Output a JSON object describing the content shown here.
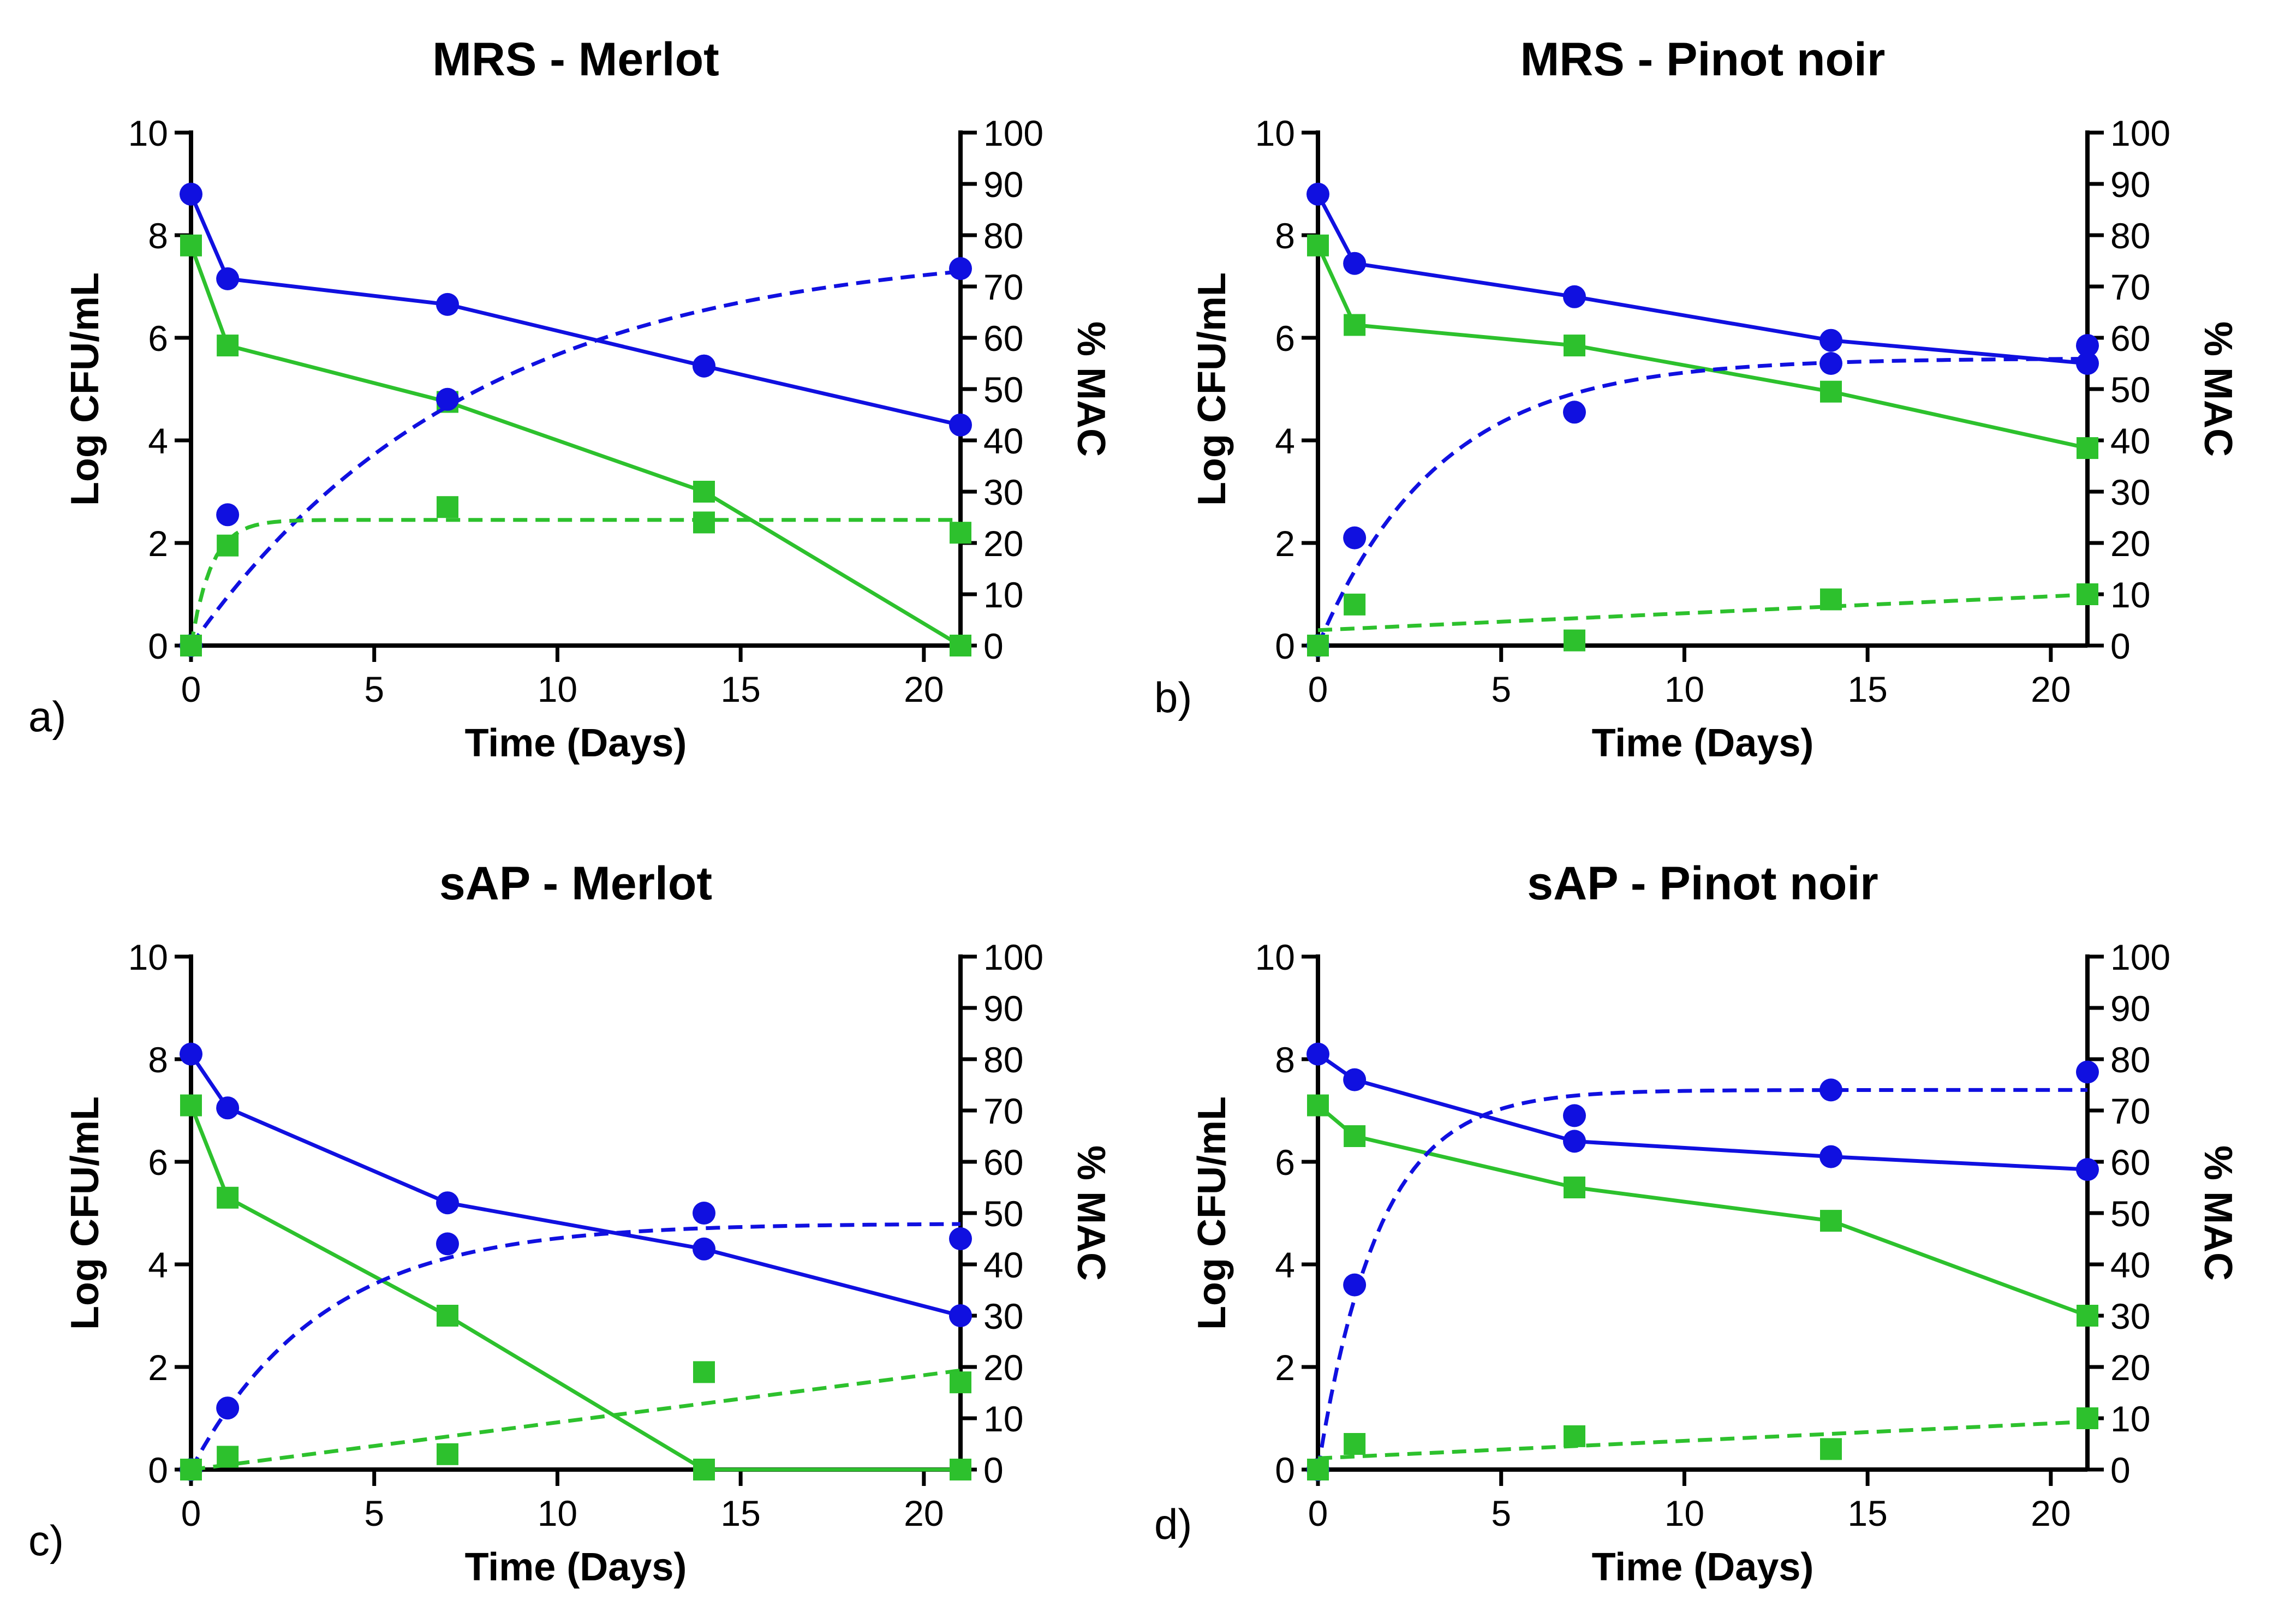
{
  "colors": {
    "blue": "#1010e0",
    "green": "#2dc12d",
    "axis": "#000000"
  },
  "chart_data": [
    {
      "type": "line",
      "panel_label": "a)",
      "title": "MRS - Merlot",
      "xlabel": "Time (Days)",
      "ylabel": "Log CFU/mL",
      "y2label": "% MAC",
      "xlim": [
        0,
        21
      ],
      "ylim": [
        0,
        10
      ],
      "y2lim": [
        0,
        100
      ],
      "xticks": [
        0,
        5,
        10,
        15,
        20
      ],
      "yticks": [
        0,
        2,
        4,
        6,
        8,
        10
      ],
      "y2ticks": [
        0,
        10,
        20,
        30,
        40,
        50,
        60,
        70,
        80,
        90,
        100
      ],
      "series": [
        {
          "name": "Log CFU/mL (circles)",
          "axis": "left",
          "color": "blue",
          "marker": "circle",
          "line": "solid",
          "x": [
            0,
            1,
            7,
            14,
            21
          ],
          "values": [
            8.8,
            7.15,
            6.65,
            5.45,
            4.3
          ]
        },
        {
          "name": "Log CFU/mL (squares)",
          "axis": "left",
          "color": "green",
          "marker": "square",
          "line": "solid",
          "x": [
            0,
            1,
            7,
            14,
            21
          ],
          "values": [
            7.8,
            5.85,
            4.75,
            3.0,
            0.0
          ]
        },
        {
          "name": "% MAC (circles)",
          "axis": "right",
          "color": "blue",
          "marker": "circle",
          "line": "dashed",
          "x": [
            0,
            1,
            7,
            14,
            21
          ],
          "values": [
            0,
            25.5,
            48,
            54.5,
            73.5
          ],
          "fit": {
            "model": "one-phase",
            "ymax": 78,
            "k": 0.13
          }
        },
        {
          "name": "% MAC (squares)",
          "axis": "right",
          "color": "green",
          "marker": "square",
          "line": "dashed",
          "x": [
            0,
            1,
            7,
            14,
            21
          ],
          "values": [
            0,
            19.5,
            27,
            24,
            22
          ],
          "fit": {
            "model": "one-phase",
            "ymax": 24.5,
            "k": 1.8
          }
        }
      ]
    },
    {
      "type": "line",
      "panel_label": "b)",
      "title": "MRS - Pinot noir",
      "xlabel": "Time (Days)",
      "ylabel": "Log CFU/mL",
      "y2label": "% MAC",
      "xlim": [
        0,
        21
      ],
      "ylim": [
        0,
        10
      ],
      "y2lim": [
        0,
        100
      ],
      "xticks": [
        0,
        5,
        10,
        15,
        20
      ],
      "yticks": [
        0,
        2,
        4,
        6,
        8,
        10
      ],
      "y2ticks": [
        0,
        10,
        20,
        30,
        40,
        50,
        60,
        70,
        80,
        90,
        100
      ],
      "series": [
        {
          "name": "Log CFU/mL (circles)",
          "axis": "left",
          "color": "blue",
          "marker": "circle",
          "line": "solid",
          "x": [
            0,
            1,
            7,
            14,
            21
          ],
          "values": [
            8.8,
            7.45,
            6.8,
            5.95,
            5.5
          ]
        },
        {
          "name": "Log CFU/mL (squares)",
          "axis": "left",
          "color": "green",
          "marker": "square",
          "line": "solid",
          "x": [
            0,
            1,
            7,
            14,
            21
          ],
          "values": [
            7.8,
            6.25,
            5.85,
            4.95,
            3.85
          ]
        },
        {
          "name": "% MAC (circles)",
          "axis": "right",
          "color": "blue",
          "marker": "circle",
          "line": "dashed",
          "x": [
            0,
            1,
            7,
            14,
            21
          ],
          "values": [
            0,
            21,
            45.5,
            55,
            58.5
          ],
          "fit": {
            "model": "one-phase",
            "ymax": 56,
            "k": 0.3
          }
        },
        {
          "name": "% MAC (squares)",
          "axis": "right",
          "color": "green",
          "marker": "square",
          "line": "dashed",
          "x": [
            0,
            1,
            7,
            14,
            21
          ],
          "values": [
            0,
            8,
            1,
            9,
            10
          ],
          "fit": {
            "model": "linear",
            "y0": 3,
            "slope": 0.33
          }
        }
      ]
    },
    {
      "type": "line",
      "panel_label": "c)",
      "title": "sAP - Merlot",
      "xlabel": "Time (Days)",
      "ylabel": "Log CFU/mL",
      "y2label": "% MAC",
      "xlim": [
        0,
        21
      ],
      "ylim": [
        0,
        10
      ],
      "y2lim": [
        0,
        100
      ],
      "xticks": [
        0,
        5,
        10,
        15,
        20
      ],
      "yticks": [
        0,
        2,
        4,
        6,
        8,
        10
      ],
      "y2ticks": [
        0,
        10,
        20,
        30,
        40,
        50,
        60,
        70,
        80,
        90,
        100
      ],
      "series": [
        {
          "name": "Log CFU/mL (circles)",
          "axis": "left",
          "color": "blue",
          "marker": "circle",
          "line": "solid",
          "x": [
            0,
            1,
            7,
            14,
            21
          ],
          "values": [
            8.1,
            7.05,
            5.2,
            4.3,
            3.0
          ]
        },
        {
          "name": "Log CFU/mL (squares)",
          "axis": "left",
          "color": "green",
          "marker": "square",
          "line": "solid",
          "x": [
            0,
            1,
            7,
            14,
            21
          ],
          "values": [
            7.1,
            5.3,
            3.0,
            0.0,
            0.0
          ]
        },
        {
          "name": "% MAC (circles)",
          "axis": "right",
          "color": "blue",
          "marker": "circle",
          "line": "dashed",
          "x": [
            0,
            1,
            7,
            14,
            21
          ],
          "values": [
            0,
            12,
            44,
            50,
            45
          ],
          "fit": {
            "model": "one-phase",
            "ymax": 48,
            "k": 0.28
          }
        },
        {
          "name": "% MAC (squares)",
          "axis": "right",
          "color": "green",
          "marker": "square",
          "line": "dashed",
          "x": [
            0,
            1,
            7,
            14,
            21
          ],
          "values": [
            0,
            2.5,
            3,
            19,
            17
          ],
          "fit": {
            "model": "linear",
            "y0": 0,
            "slope": 0.92
          }
        }
      ]
    },
    {
      "type": "line",
      "panel_label": "d)",
      "title": "sAP - Pinot noir",
      "xlabel": "Time (Days)",
      "ylabel": "Log CFU/mL",
      "y2label": "% MAC",
      "xlim": [
        0,
        21
      ],
      "ylim": [
        0,
        10
      ],
      "y2lim": [
        0,
        100
      ],
      "xticks": [
        0,
        5,
        10,
        15,
        20
      ],
      "yticks": [
        0,
        2,
        4,
        6,
        8,
        10
      ],
      "y2ticks": [
        0,
        10,
        20,
        30,
        40,
        50,
        60,
        70,
        80,
        90,
        100
      ],
      "series": [
        {
          "name": "Log CFU/mL (circles)",
          "axis": "left",
          "color": "blue",
          "marker": "circle",
          "line": "solid",
          "x": [
            0,
            1,
            7,
            14,
            21
          ],
          "values": [
            8.1,
            7.6,
            6.4,
            6.1,
            5.85
          ]
        },
        {
          "name": "Log CFU/mL (squares)",
          "axis": "left",
          "color": "green",
          "marker": "square",
          "line": "solid",
          "x": [
            0,
            1,
            7,
            14,
            21
          ],
          "values": [
            7.1,
            6.5,
            5.5,
            4.85,
            3.0
          ]
        },
        {
          "name": "% MAC (circles)",
          "axis": "right",
          "color": "blue",
          "marker": "circle",
          "line": "dashed",
          "x": [
            0,
            1,
            7,
            14,
            21
          ],
          "values": [
            0,
            36,
            69,
            74,
            77.5
          ],
          "fit": {
            "model": "one-phase",
            "ymax": 74,
            "k": 0.6
          }
        },
        {
          "name": "% MAC (squares)",
          "axis": "right",
          "color": "green",
          "marker": "square",
          "line": "dashed",
          "x": [
            0,
            1,
            7,
            14,
            21
          ],
          "values": [
            0,
            5,
            6.5,
            4,
            10
          ],
          "fit": {
            "model": "linear",
            "y0": 2.2,
            "slope": 0.34
          }
        }
      ]
    }
  ]
}
